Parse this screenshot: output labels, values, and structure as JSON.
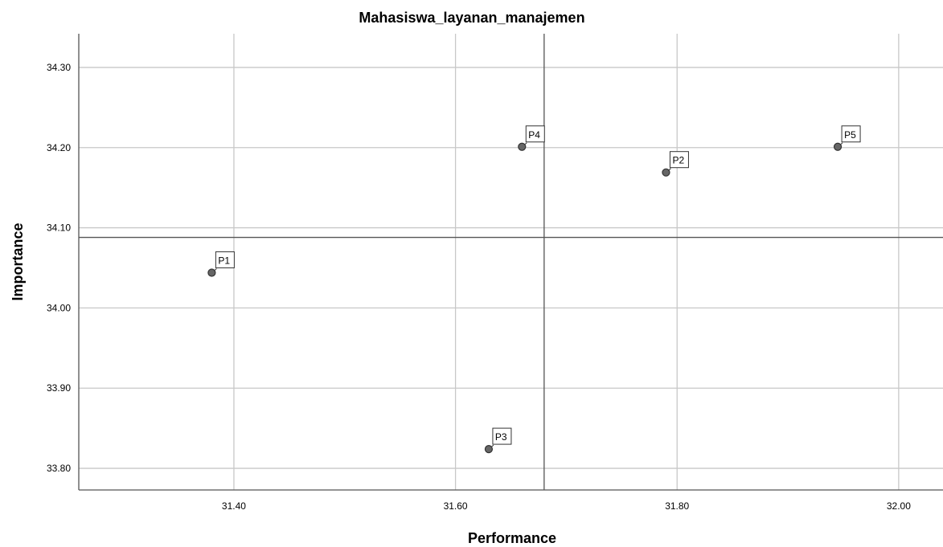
{
  "chart_data": {
    "type": "scatter",
    "title": "Mahasiswa_layanan_manajemen",
    "xlabel": "Performance",
    "ylabel": "Importance",
    "xlim": [
      31.26,
      32.04
    ],
    "ylim": [
      33.773,
      34.342
    ],
    "xticks": [
      31.4,
      31.6,
      31.8,
      32.0
    ],
    "xtick_labels": [
      "31.40",
      "31.60",
      "31.80",
      "32.00"
    ],
    "yticks": [
      33.8,
      33.9,
      34.0,
      34.1,
      34.2,
      34.3
    ],
    "ytick_labels": [
      "33.80",
      "33.90",
      "34.00",
      "34.10",
      "34.20",
      "34.30"
    ],
    "grid": true,
    "reference_lines": {
      "x_mean": 31.68,
      "y_mean": 34.088
    },
    "points": [
      {
        "label": "P1",
        "x": 31.38,
        "y": 34.044
      },
      {
        "label": "P2",
        "x": 31.79,
        "y": 34.169
      },
      {
        "label": "P3",
        "x": 31.63,
        "y": 33.824
      },
      {
        "label": "P4",
        "x": 31.66,
        "y": 34.201
      },
      {
        "label": "P5",
        "x": 31.945,
        "y": 34.201
      }
    ],
    "point_color": "#666666",
    "line_color": "#555555",
    "grid_color": "#c8c8c8"
  }
}
